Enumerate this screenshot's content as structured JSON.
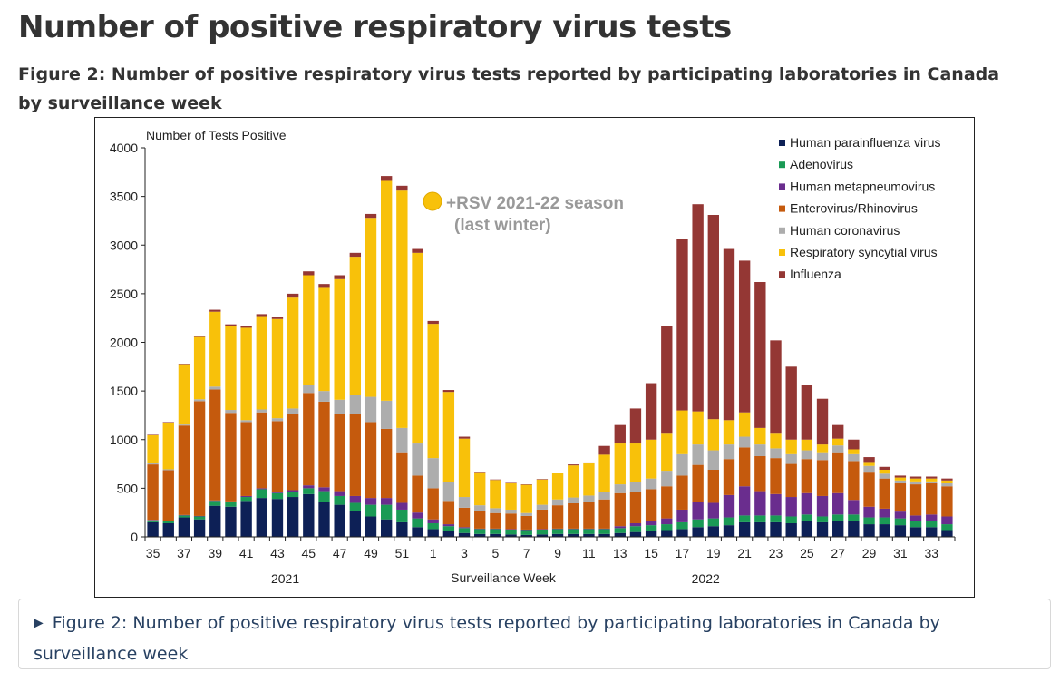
{
  "page": {
    "title": "Number of positive respiratory virus tests",
    "caption": "Figure 2: Number of positive respiratory virus tests reported by participating laboratories in Canada by surveillance week"
  },
  "details": {
    "triangle": "▶",
    "label": "Figure 2: Number of positive respiratory virus tests reported by participating laboratories in Canada by surveillance week"
  },
  "chart_data": {
    "type": "bar",
    "stacked": true,
    "ylabel": "Number of Tests Positive",
    "xlabel": "Surveillance Week",
    "ylim": [
      0,
      4000
    ],
    "yticks": [
      0,
      500,
      1000,
      1500,
      2000,
      2500,
      3000,
      3500,
      4000
    ],
    "grid": false,
    "legend_position": "top-right",
    "year_labels": [
      {
        "text": "2021",
        "week_index": 8.5
      },
      {
        "text": "2022",
        "week_index": 35.5
      }
    ],
    "annotation": {
      "icon": "yellow-circle",
      "line1": "+RSV 2021-22 season",
      "line2": "(last winter)",
      "color": "#999999"
    },
    "categories": [
      35,
      36,
      37,
      38,
      39,
      40,
      41,
      42,
      43,
      44,
      45,
      46,
      47,
      48,
      49,
      50,
      51,
      52,
      1,
      2,
      3,
      4,
      5,
      6,
      7,
      8,
      9,
      10,
      11,
      12,
      13,
      14,
      15,
      16,
      17,
      18,
      19,
      20,
      21,
      22,
      23,
      24,
      25,
      26,
      27,
      28,
      29,
      30,
      31,
      32,
      33,
      34
    ],
    "x_tick_labels": [
      "35",
      "",
      "37",
      "",
      "39",
      "",
      "41",
      "",
      "43",
      "",
      "45",
      "",
      "47",
      "",
      "49",
      "",
      "51",
      "",
      "1",
      "",
      "3",
      "",
      "5",
      "",
      "7",
      "",
      "9",
      "",
      "11",
      "",
      "13",
      "",
      "15",
      "",
      "17",
      "",
      "19",
      "",
      "21",
      "",
      "23",
      "",
      "25",
      "",
      "27",
      "",
      "29",
      "",
      "31",
      "",
      "33",
      ""
    ],
    "series": [
      {
        "name": "Human parainfluenza virus",
        "color": "#0d2056",
        "values": [
          150,
          140,
          200,
          180,
          320,
          310,
          370,
          400,
          390,
          410,
          440,
          360,
          330,
          270,
          210,
          180,
          150,
          100,
          80,
          60,
          40,
          30,
          30,
          25,
          20,
          25,
          30,
          30,
          30,
          30,
          40,
          50,
          60,
          70,
          80,
          100,
          110,
          120,
          150,
          150,
          150,
          140,
          160,
          150,
          160,
          160,
          130,
          130,
          120,
          100,
          100,
          70
        ]
      },
      {
        "name": "Adenovirus",
        "color": "#1a9a55",
        "values": [
          20,
          20,
          20,
          30,
          50,
          50,
          40,
          90,
          60,
          50,
          60,
          110,
          90,
          80,
          120,
          150,
          130,
          90,
          60,
          50,
          50,
          50,
          50,
          50,
          50,
          50,
          50,
          50,
          50,
          50,
          50,
          60,
          60,
          60,
          70,
          80,
          80,
          80,
          70,
          70,
          70,
          70,
          70,
          60,
          70,
          70,
          70,
          70,
          70,
          60,
          60,
          60
        ]
      },
      {
        "name": "Human metapneumovirus",
        "color": "#6a2d8e",
        "values": [
          5,
          5,
          5,
          5,
          5,
          5,
          10,
          10,
          10,
          20,
          30,
          40,
          50,
          70,
          70,
          70,
          70,
          60,
          40,
          20,
          10,
          5,
          5,
          5,
          5,
          5,
          5,
          5,
          5,
          5,
          20,
          30,
          40,
          60,
          130,
          180,
          160,
          230,
          300,
          250,
          220,
          200,
          220,
          210,
          220,
          150,
          110,
          90,
          70,
          60,
          70,
          80
        ]
      },
      {
        "name": "Enterovirus/Rhinovirus",
        "color": "#c55a0d",
        "values": [
          570,
          520,
          920,
          1180,
          1140,
          910,
          760,
          780,
          730,
          780,
          950,
          880,
          790,
          840,
          780,
          710,
          520,
          380,
          320,
          240,
          200,
          180,
          160,
          160,
          140,
          200,
          240,
          260,
          270,
          300,
          340,
          320,
          330,
          330,
          350,
          380,
          340,
          370,
          400,
          360,
          370,
          340,
          350,
          370,
          420,
          400,
          360,
          310,
          290,
          320,
          320,
          310
        ]
      },
      {
        "name": "Human coronavirus",
        "color": "#adadad",
        "values": [
          10,
          10,
          10,
          20,
          30,
          30,
          20,
          30,
          30,
          60,
          80,
          110,
          150,
          200,
          260,
          290,
          250,
          330,
          310,
          190,
          110,
          60,
          50,
          40,
          30,
          50,
          60,
          60,
          70,
          80,
          90,
          100,
          110,
          160,
          220,
          210,
          200,
          150,
          110,
          120,
          100,
          100,
          90,
          80,
          70,
          70,
          60,
          50,
          30,
          30,
          20,
          30
        ]
      },
      {
        "name": "Respiratory syncytial virus",
        "color": "#f8c10a",
        "values": [
          290,
          480,
          620,
          640,
          770,
          860,
          950,
          960,
          1020,
          1140,
          1130,
          1060,
          1240,
          1420,
          1840,
          2260,
          2440,
          1960,
          1380,
          930,
          600,
          340,
          290,
          270,
          290,
          260,
          270,
          330,
          330,
          380,
          420,
          400,
          400,
          390,
          450,
          340,
          320,
          250,
          250,
          170,
          160,
          150,
          110,
          80,
          70,
          50,
          40,
          40,
          30,
          30,
          30,
          30
        ]
      },
      {
        "name": "Influenza",
        "color": "#943734",
        "values": [
          5,
          5,
          5,
          5,
          20,
          20,
          20,
          20,
          20,
          40,
          40,
          40,
          40,
          40,
          40,
          50,
          50,
          40,
          30,
          20,
          20,
          5,
          5,
          5,
          5,
          5,
          5,
          10,
          10,
          90,
          190,
          360,
          580,
          1100,
          1760,
          2130,
          2100,
          1760,
          1560,
          1500,
          950,
          750,
          560,
          470,
          140,
          100,
          50,
          30,
          20,
          20,
          20,
          20
        ]
      }
    ]
  }
}
